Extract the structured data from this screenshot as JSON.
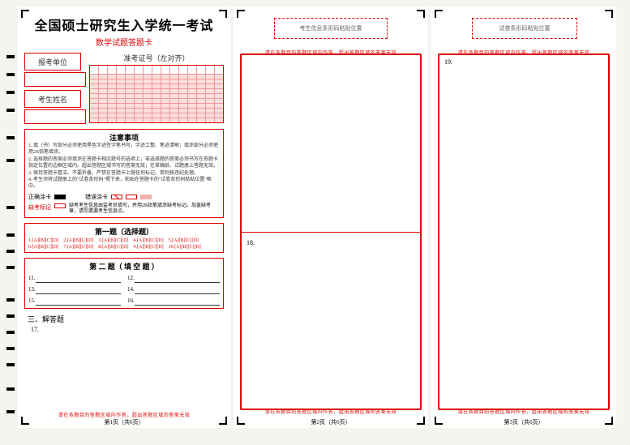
{
  "colors": {
    "red": "#d00020",
    "light_red": "#fccfd0",
    "text": "#222",
    "bg": "#f5f5f0"
  },
  "header": {
    "title": "全国硕士研究生入学统一考试",
    "subtitle": "数学试题答题卡"
  },
  "barcode_boxes": {
    "examinee": "考生信息条形码粘贴位置",
    "paper": "试卷条形码粘贴位置"
  },
  "info": {
    "unit_label": "报考单位",
    "name_label": "考生姓名",
    "ticket_label": "准考证号（左对齐）",
    "ticket_digits": 15,
    "digit_rows": 10
  },
  "notice": {
    "title": "注意事项",
    "items": [
      "1. 填（书）写部分必须使用黑色字迹签字笔书写，字迹工整、笔迹清晰；填涂部分必须使用2B铅笔填涂。",
      "2. 选择题的答案必须填涂在答题卡相应题号的选项上，非选择题的答案必须书写在答题卡指定位置的边框区域内。超出答题区域书写的答案无效；在草稿纸、试题册上答题无效。",
      "3. 保持答题卡整洁、不要折叠，严禁在答题卡上做任何标记，否则按违纪处理。",
      "4. 考生须将试题册上的\"试卷条形码\"揭下来，粘贴在答题卡的\"试卷条形码粘贴位置\"框中。"
    ],
    "correct_fill_label": "正确涂卡",
    "wrong_fill_label": "错误涂卡",
    "absent_label": "缺考标记",
    "absent_text": "缺考考生信息由监考员填写，并用2B铅笔填涂缺考标记。加盖缺考章，请勿遗漏考生信息点。"
  },
  "sections": {
    "s1": {
      "title": "第一题（选择题）",
      "items": [
        "1.[A][B][C][D]",
        "2.[A][B][C][D]",
        "3.[A][B][C][D]",
        "4.[A][B][C][D]",
        "5.[A][B][C][D]",
        "6.[A][B][C][D]",
        "7.[A][B][C][D]",
        "8.[A][B][C][D]",
        "9.[A][B][C][D]",
        "10.[A][B][C][D]"
      ]
    },
    "s2": {
      "title": "第 二 题（ 填 空 题 ）",
      "items": [
        "11.",
        "12.",
        "13.",
        "14.",
        "15.",
        "16."
      ]
    },
    "s3": {
      "title": "三、解答题",
      "first_q": "17."
    }
  },
  "panels": {
    "p2": {
      "q_top": "",
      "q_mid": "18."
    },
    "p3": {
      "q_top": "19."
    }
  },
  "warn_text": {
    "top": "请在各题目的答题区域内作答，超出答题区域的答案无效",
    "bot": "请在各题目的答题区域内作答，超出答题区域的答案无效"
  },
  "page_labels": {
    "p1": "第1页（共6页）",
    "p2": "第2页（共6页）",
    "p3": "第3页（共6页）"
  },
  "timing_mark_positions": [
    60,
    82,
    104,
    126,
    160,
    188,
    246,
    280,
    300,
    320,
    360,
    380,
    400,
    420,
    440,
    470,
    498
  ]
}
